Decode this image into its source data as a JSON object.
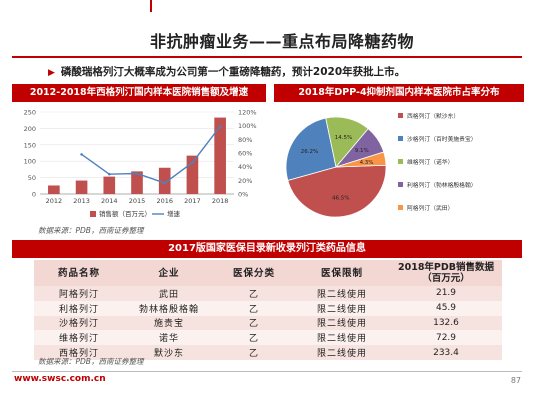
{
  "slide": {
    "title": "非抗肿瘤业务——重点布局降糖药物",
    "bullet_icon": "triangle-arrow-icon",
    "bullet": "磷酸瑞格列汀大概率成为公司第一个重磅降糖药，预计2020年获批上市。",
    "source_1": "数据来源：PDB，西南证券整理",
    "source_2": "数据来源：PDB，西南证券整理",
    "footer_url": "www.swsc.com.cn",
    "page_number": "87",
    "accent_color": "#c00000"
  },
  "left_chart": {
    "header": "2012-2018年西格列汀国内样本医院销售额及增速"
  },
  "right_chart": {
    "header": "2018年DPP-4抑制剂国内样本医院市占率分布"
  },
  "table": {
    "title": "2017版国家医保目录新收录列汀类药品信息",
    "headers": [
      "药品名称",
      "企业",
      "医保分类",
      "医保限制",
      "2018年PDB销售数据（百万元）"
    ],
    "rows": [
      [
        "阿格列汀",
        "武田",
        "乙",
        "限二线使用",
        "21.9"
      ],
      [
        "利格列汀",
        "勃林格殷格翰",
        "乙",
        "限二线使用",
        "45.9"
      ],
      [
        "沙格列汀",
        "施贵宝",
        "乙",
        "限二线使用",
        "132.6"
      ],
      [
        "维格列汀",
        "诺华",
        "乙",
        "限二线使用",
        "72.9"
      ],
      [
        "西格列汀",
        "默沙东",
        "乙",
        "限二线使用",
        "233.4"
      ]
    ]
  },
  "chart_data": [
    {
      "type": "bar",
      "categories": [
        "2012",
        "2013",
        "2014",
        "2015",
        "2016",
        "2017",
        "2018"
      ],
      "series": [
        {
          "name": "销售额（百万元）",
          "type": "bar",
          "axis": "left",
          "color": "#c0504d",
          "values": [
            26,
            41,
            53,
            69,
            80,
            117,
            233
          ]
        },
        {
          "name": "增速",
          "type": "line",
          "axis": "right",
          "color": "#4f81bd",
          "values": [
            null,
            58,
            29,
            30,
            16,
            46,
            99
          ]
        }
      ],
      "ylim": [
        0,
        250
      ],
      "yticks": [
        0,
        50,
        100,
        150,
        200,
        250
      ],
      "y2lim": [
        0,
        120
      ],
      "y2ticks": [
        "0%",
        "20%",
        "40%",
        "60%",
        "80%",
        "100%",
        "120%"
      ],
      "legend": "bottom"
    },
    {
      "type": "pie",
      "labels": [
        "西格列汀（默沙东）",
        "沙格列汀（百时美施贵宝）",
        "维格列汀（诺华）",
        "利格列汀（勃林格殷格翰）",
        "阿格列汀（武田）"
      ],
      "values": [
        46.5,
        26.2,
        14.5,
        9.1,
        4.3
      ],
      "value_labels": [
        "46.5%",
        "26.2%",
        "14.5%",
        "9.1%",
        "4.3%"
      ],
      "colors": [
        "#c0504d",
        "#4f81bd",
        "#9bbb59",
        "#8064a2",
        "#f79646"
      ],
      "legend": "right"
    }
  ]
}
